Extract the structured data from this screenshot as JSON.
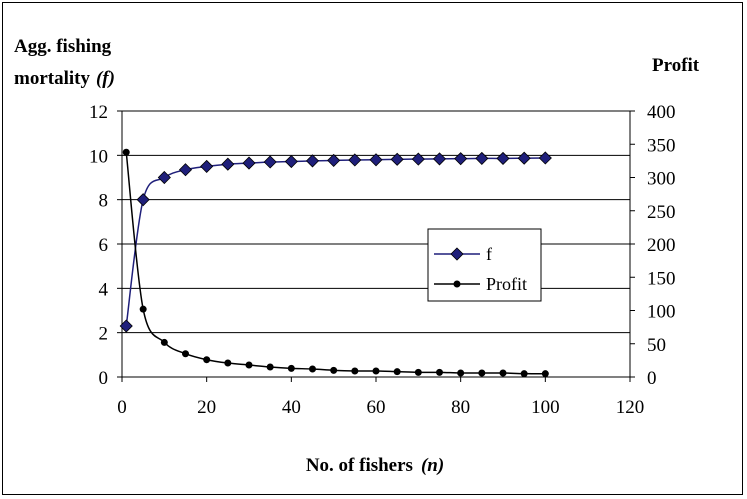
{
  "chart_data": {
    "type": "line",
    "y_left_label_line1": "Agg. fishing",
    "y_left_label_line2": "mortality",
    "y_left_label_symbol": "(f)",
    "y_right_label": "Profit",
    "xlabel": "No. of fishers",
    "xlabel_symbol": "(n)",
    "xlim": [
      0,
      120
    ],
    "ylim_left": [
      0,
      12
    ],
    "ylim_right": [
      0,
      400
    ],
    "x_ticks": [
      "0",
      "20",
      "40",
      "60",
      "80",
      "100",
      "120"
    ],
    "y_left_ticks": [
      "0",
      "2",
      "4",
      "6",
      "8",
      "10",
      "12"
    ],
    "y_right_ticks": [
      "0",
      "50",
      "100",
      "150",
      "200",
      "250",
      "300",
      "350",
      "400"
    ],
    "grid": "horizontal",
    "legend_position": "center-right",
    "series": [
      {
        "name": "f",
        "axis": "left",
        "color": "#1f1f7a",
        "marker": "diamond",
        "x": [
          1,
          5,
          10,
          15,
          20,
          25,
          30,
          35,
          40,
          45,
          50,
          55,
          60,
          65,
          70,
          75,
          80,
          85,
          90,
          95,
          100
        ],
        "values": [
          2.3,
          8.0,
          9.0,
          9.35,
          9.5,
          9.6,
          9.65,
          9.7,
          9.72,
          9.75,
          9.77,
          9.79,
          9.8,
          9.82,
          9.83,
          9.84,
          9.85,
          9.86,
          9.86,
          9.87,
          9.88
        ]
      },
      {
        "name": "Profit",
        "axis": "right",
        "color": "#000000",
        "marker": "circle",
        "x": [
          1,
          5,
          10,
          15,
          20,
          25,
          30,
          35,
          40,
          45,
          50,
          55,
          60,
          65,
          70,
          75,
          80,
          85,
          90,
          95,
          100
        ],
        "values": [
          338,
          102,
          52,
          35,
          26,
          21,
          18,
          15,
          13,
          12,
          10,
          9,
          9,
          8,
          7,
          7,
          6,
          6,
          6,
          5,
          5
        ]
      }
    ]
  }
}
